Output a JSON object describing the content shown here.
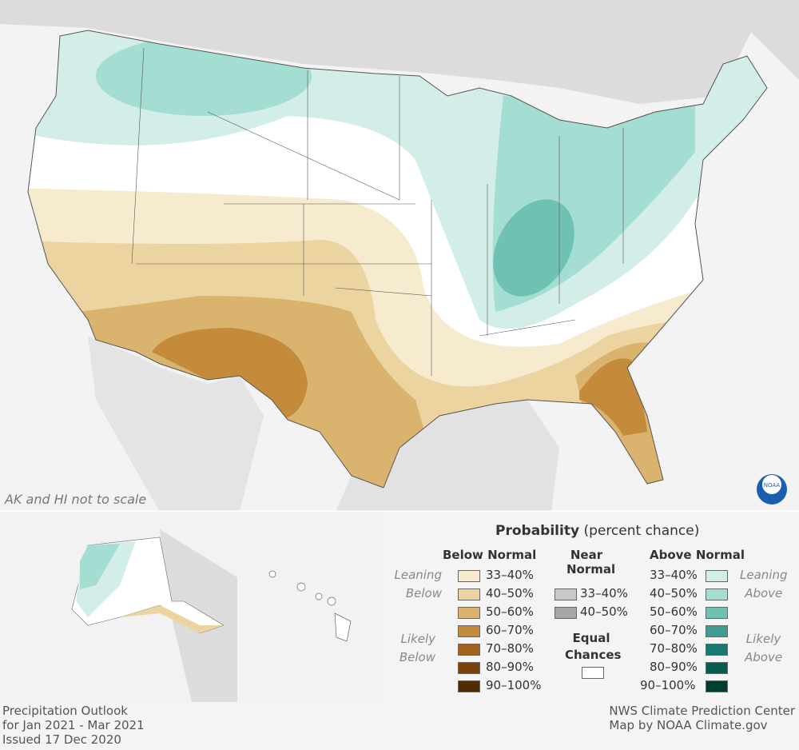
{
  "map": {
    "note": "AK and HI not to scale",
    "logo": "NOAA"
  },
  "legend": {
    "title_bold": "Probability",
    "title_rest": "(percent chance)",
    "below": {
      "heading": "Below Normal",
      "leaning": [
        "Leaning",
        "Below"
      ],
      "likely": [
        "Likely",
        "Below"
      ],
      "items": [
        {
          "label": "33–40%",
          "color": "#f7ebcf"
        },
        {
          "label": "40–50%",
          "color": "#ecd4a0"
        },
        {
          "label": "50–60%",
          "color": "#dab46e"
        },
        {
          "label": "60–70%",
          "color": "#c48b3a"
        },
        {
          "label": "70–80%",
          "color": "#a0621c"
        },
        {
          "label": "80–90%",
          "color": "#7b420c"
        },
        {
          "label": "90–100%",
          "color": "#4f2b06"
        }
      ]
    },
    "near": {
      "heading": [
        "Near",
        "Normal"
      ],
      "items": [
        {
          "label": "33–40%",
          "color": "#c8c8c8"
        },
        {
          "label": "40–50%",
          "color": "#a7a7a7"
        }
      ],
      "equal": [
        "Equal",
        "Chances"
      ],
      "equal_color": "#ffffff"
    },
    "above": {
      "heading": "Above Normal",
      "leaning": [
        "Leaning",
        "Above"
      ],
      "likely": [
        "Likely",
        "Above"
      ],
      "items": [
        {
          "label": "33–40%",
          "color": "#d3ede8"
        },
        {
          "label": "40–50%",
          "color": "#a4ddd2"
        },
        {
          "label": "50–60%",
          "color": "#6ec1b3"
        },
        {
          "label": "60–70%",
          "color": "#3f9c90"
        },
        {
          "label": "70–80%",
          "color": "#177a70"
        },
        {
          "label": "80–90%",
          "color": "#055d52"
        },
        {
          "label": "90–100%",
          "color": "#023d34"
        }
      ]
    }
  },
  "footer": {
    "left": [
      "Precipitation Outlook",
      "for Jan 2021 - Mar 2021",
      "Issued 17 Dec 2020"
    ],
    "right": [
      "NWS Climate Prediction Center",
      "Map by NOAA Climate.gov"
    ]
  }
}
